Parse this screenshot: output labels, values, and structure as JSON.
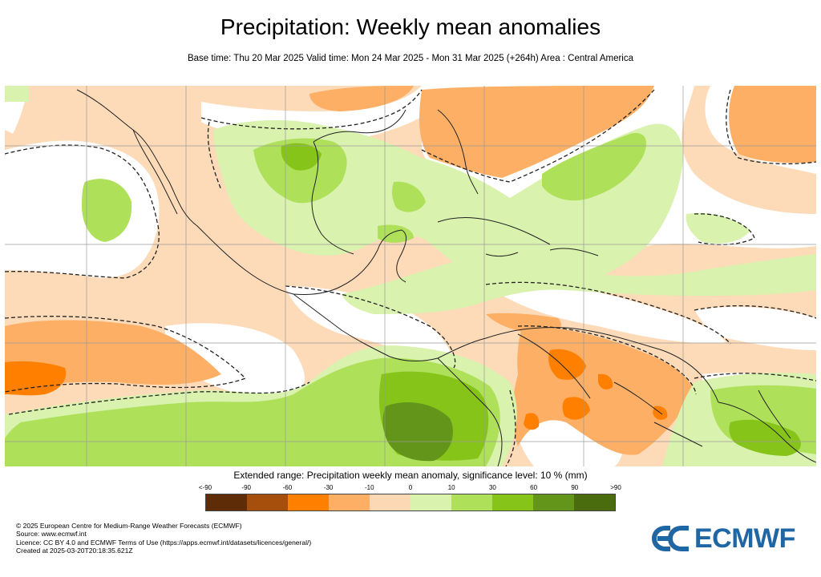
{
  "title": "Precipitation: Weekly mean anomalies",
  "subtitle": "Base time: Thu 20 Mar 2025 Valid time: Mon 24 Mar 2025 - Mon 31 Mar 2025 (+264h) Area : Central America",
  "legend": {
    "title": "Extended range: Precipitation weekly mean anomaly, significance level: 10 % (mm)",
    "ticks": [
      "<-90",
      "-90",
      "-60",
      "-30",
      "-10",
      "0",
      "10",
      "30",
      "60",
      "90",
      ">90"
    ],
    "colors": [
      "#5e2c06",
      "#a64f0d",
      "#ff8000",
      "#fdaf65",
      "#fdd8b5",
      "#d9f2ae",
      "#aee059",
      "#86c41a",
      "#62951a",
      "#4a6b0e"
    ]
  },
  "footer": {
    "lines": [
      "© 2025 European Centre for Medium-Range Weather Forecasts (ECMWF)",
      "Source: www.ecmwf.int",
      "Licence: CC BY 4.0 and ECMWF Terms of Use (https://apps.ecmwf.int/datasets/licences/general/)",
      "Created at 2025-03-20T20:18:35.621Z"
    ]
  },
  "logo": {
    "text": "ECMWF",
    "color": "#1e66a4"
  },
  "map": {
    "area": "Central America",
    "colors": {
      "light_orange": "#fddbb8",
      "orange": "#fdaf65",
      "dark_orange": "#ff8000",
      "white": "#ffffff",
      "light_green": "#d9f2ae",
      "green": "#aee059",
      "mid_green": "#86c41a",
      "dark_green": "#62951a",
      "coastline": "#222222",
      "gridline": "#9a9a9a"
    }
  }
}
